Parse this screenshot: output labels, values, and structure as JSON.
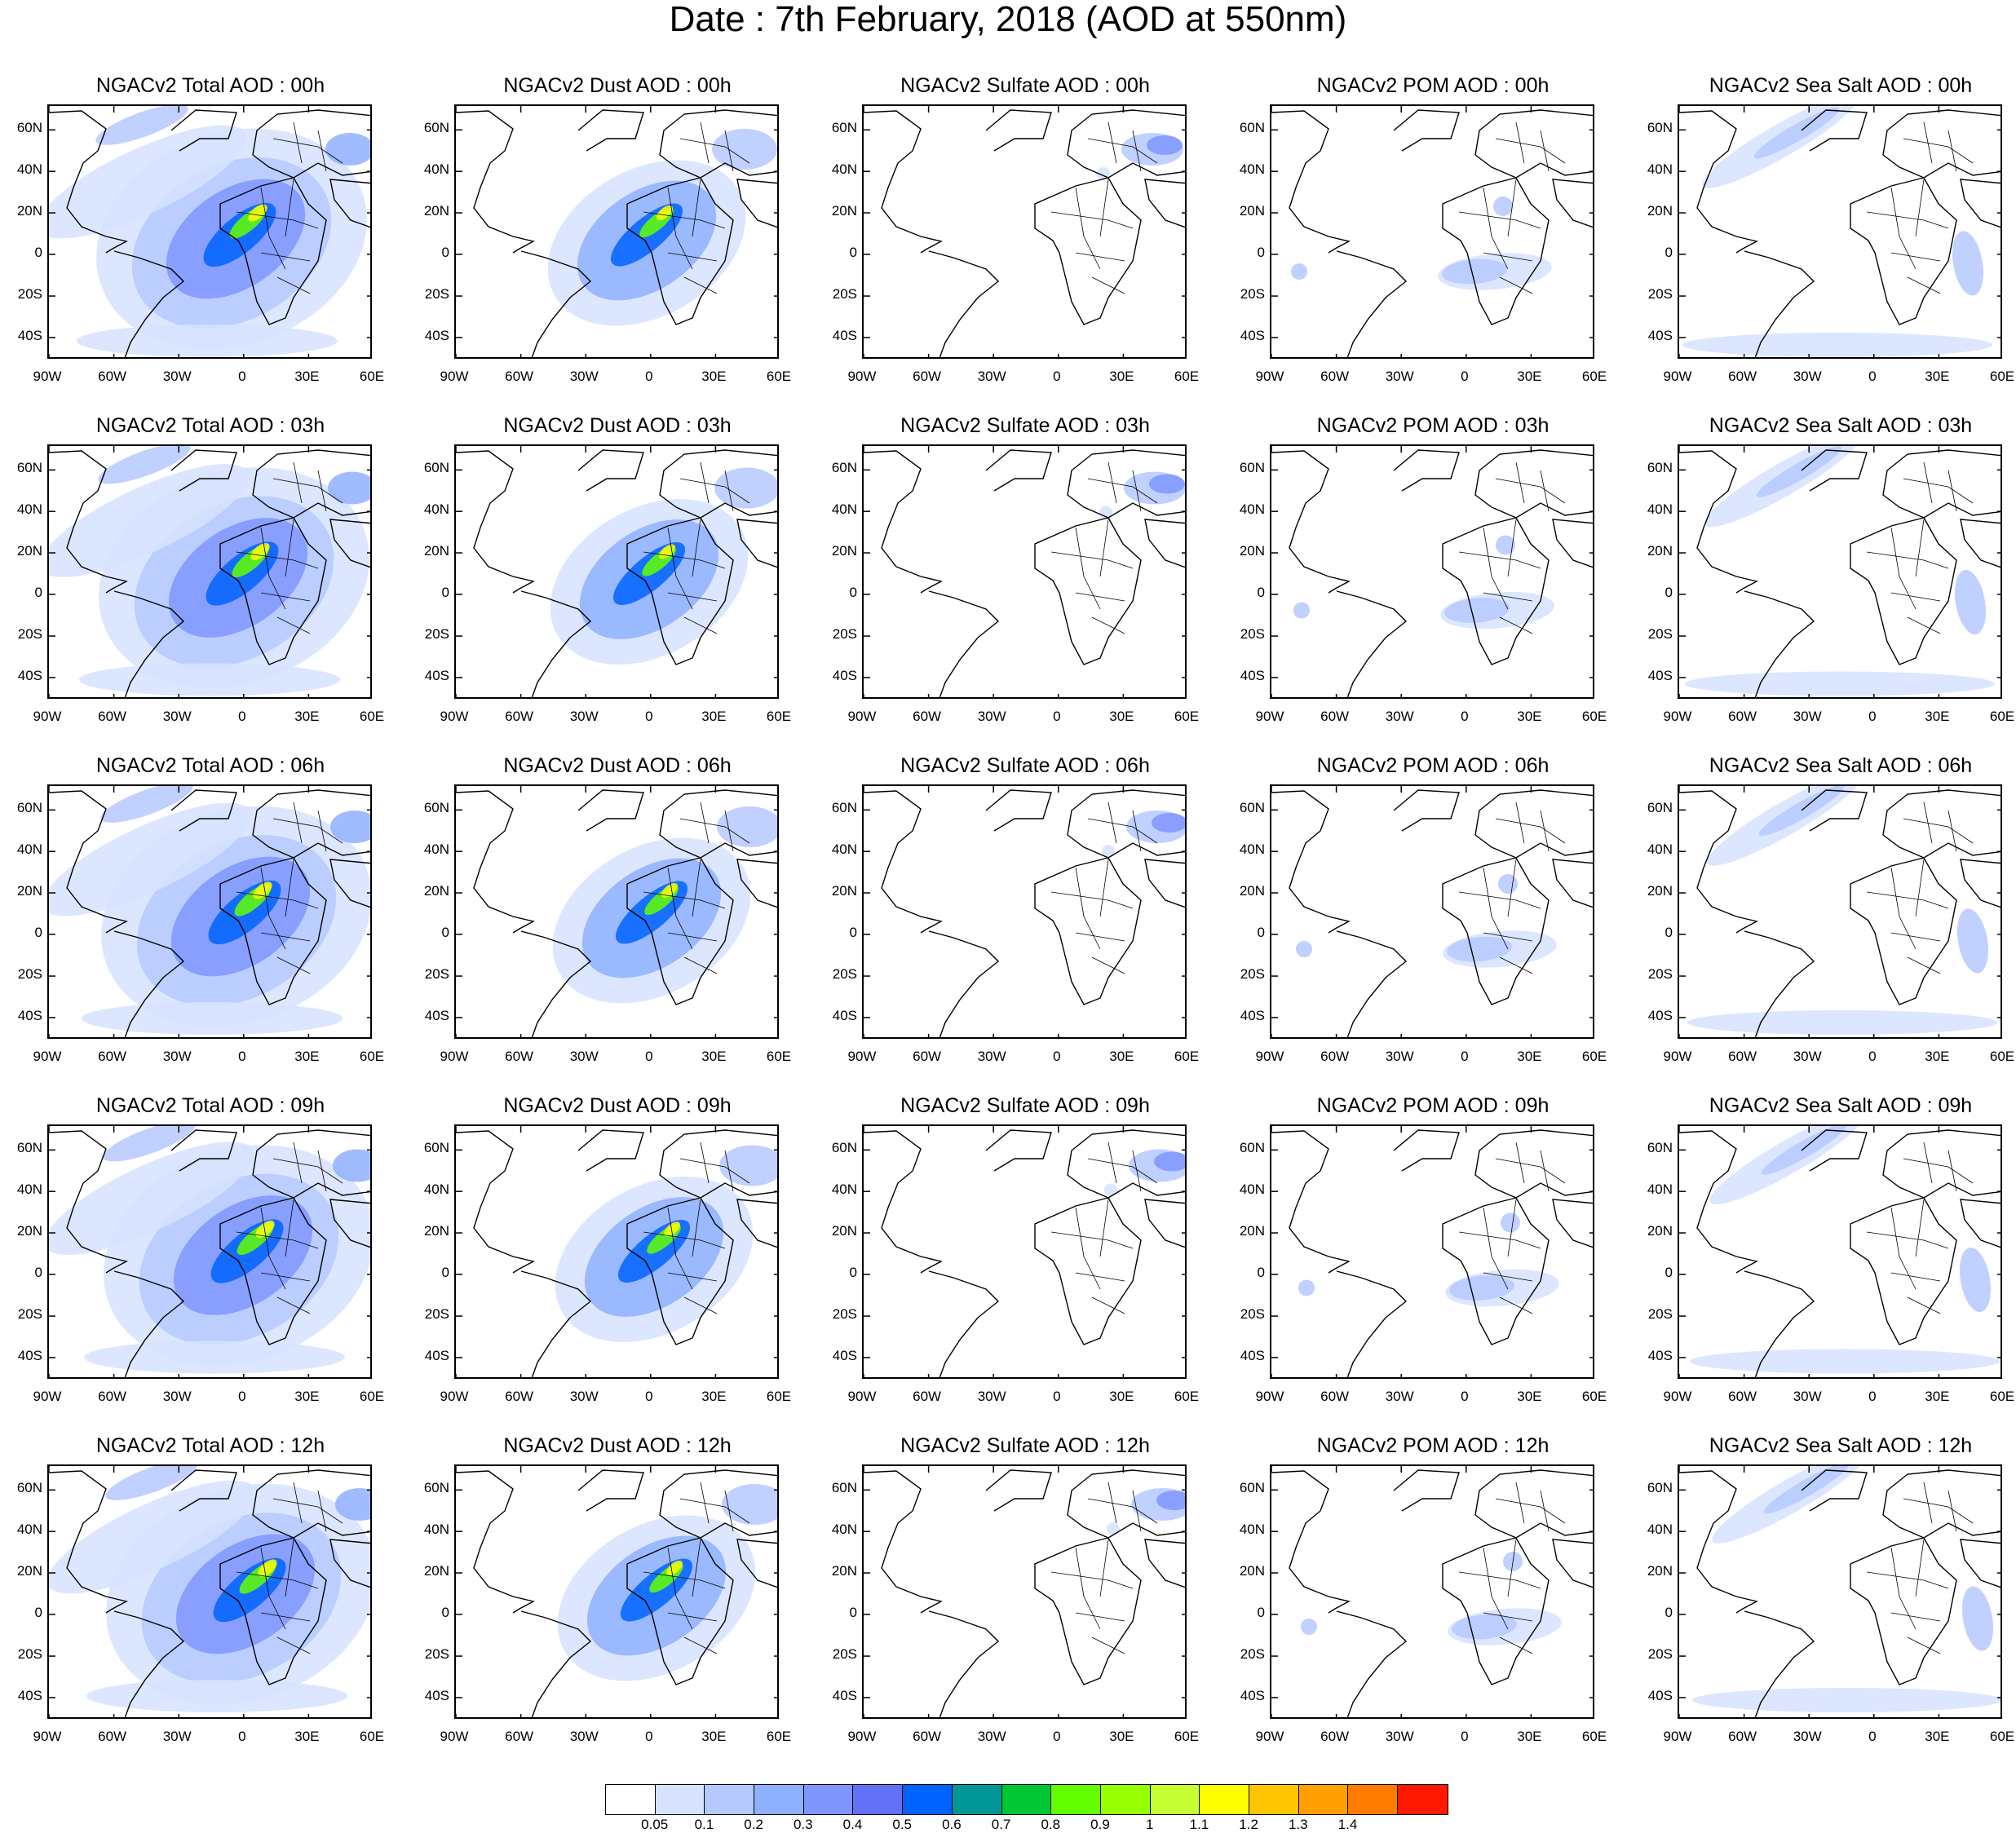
{
  "title": "Date : 7th February, 2018 (AOD at 550nm)",
  "rows": [
    {
      "hour_key": "00h",
      "titles": [
        "NGACv2 Total AOD : 00h",
        "NGACv2 Dust AOD : 00h",
        "NGACv2 Sulfate AOD : 00h",
        "NGACv2 POM AOD : 00h",
        "NGACv2 Sea Salt AOD : 00h"
      ]
    },
    {
      "hour_key": "03h",
      "titles": [
        "NGACv2 Total AOD : 03h",
        "NGACv2 Dust AOD : 03h",
        "NGACv2 Sulfate AOD : 03h",
        "NGACv2 POM AOD : 03h",
        "NGACv2 Sea Salt AOD : 03h"
      ]
    },
    {
      "hour_key": "06h",
      "titles": [
        "NGACv2 Total AOD : 06h",
        "NGACv2 Dust AOD : 06h",
        "NGACv2 Sulfate AOD : 06h",
        "NGACv2 POM AOD : 06h",
        "NGACv2 Sea Salt AOD : 06h"
      ]
    },
    {
      "hour_key": "09h",
      "titles": [
        "NGACv2 Total AOD : 09h",
        "NGACv2 Dust AOD : 09h",
        "NGACv2 Sulfate AOD : 09h",
        "NGACv2 POM AOD : 09h",
        "NGACv2 Sea Salt  AOD : 09h"
      ]
    },
    {
      "hour_key": "12h",
      "titles": [
        "NGACv2 Total AOD  : 12h",
        "NGACv2 Dust AOD : 12h",
        "NGACv2 Sulfate AOD : 12h",
        "NGACv2 POM  AOD : 12h",
        "NGACv2 Sea Salt  AOD : 12h"
      ]
    }
  ],
  "lat_labels": [
    "60N",
    "40N",
    "20N",
    "0",
    "20S",
    "40S"
  ],
  "lon_labels": [
    "90W",
    "60W",
    "30W",
    "0",
    "30E",
    "60E"
  ],
  "colorbar": {
    "colors": [
      "#ffffff",
      "#d6e2ff",
      "#b5c9ff",
      "#8fb0ff",
      "#7f96ff",
      "#6370f8",
      "#0063ff",
      "#009696",
      "#00c633",
      "#63ff00",
      "#96ff00",
      "#c6ff33",
      "#ffff00",
      "#ffc600",
      "#ffa000",
      "#ff7c00",
      "#ff1900"
    ],
    "labels": [
      "0.05",
      "0.1",
      "0.2",
      "0.3",
      "0.4",
      "0.5",
      "0.6",
      "0.7",
      "0.8",
      "0.9",
      "1",
      "1.1",
      "1.2",
      "1.3",
      "1.4"
    ]
  }
}
